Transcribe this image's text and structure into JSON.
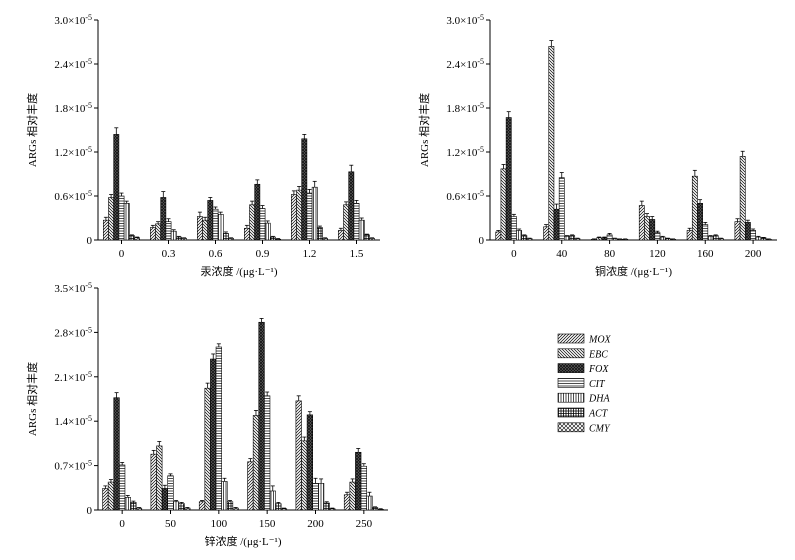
{
  "figure": {
    "legend": [
      {
        "label": "MOX",
        "pattern": "diag-right"
      },
      {
        "label": "EBC",
        "pattern": "diag-left"
      },
      {
        "label": "FOX",
        "pattern": "crosshatch-dense"
      },
      {
        "label": "CIT",
        "pattern": "horizontal"
      },
      {
        "label": "DHA",
        "pattern": "vertical"
      },
      {
        "label": "ACT",
        "pattern": "grid"
      },
      {
        "label": "CMY",
        "pattern": "crosshatch"
      }
    ],
    "legend_position": "right, beside bottom-left panel"
  },
  "chart_data": [
    {
      "type": "bar",
      "panel": "mercury",
      "title": "",
      "xlabel": "汞浓度 /(μg·L⁻¹)",
      "ylabel": "ARGs 相对丰度",
      "categories": [
        "0",
        "0.3",
        "0.6",
        "0.9",
        "1.2",
        "1.5"
      ],
      "ylim": [
        0,
        3e-05
      ],
      "yticks": [
        0,
        6e-06,
        1.2e-05,
        1.8e-05,
        2.4e-05,
        3e-05
      ],
      "ytick_labels": [
        "0",
        "0.6×10⁻⁵",
        "1.2×10⁻⁵",
        "1.8×10⁻⁵",
        "2.4×10⁻⁵",
        "3.0×10⁻⁵"
      ],
      "grid": false,
      "series": [
        {
          "name": "MOX",
          "values": [
            2.7e-06,
            1.7e-06,
            3.2e-06,
            1.6e-06,
            6.2e-06,
            1.3e-06
          ],
          "errors": [
            4e-07,
            3e-07,
            6e-07,
            4e-07,
            5e-07,
            3e-07
          ]
        },
        {
          "name": "EBC",
          "values": [
            5.8e-06,
            2.2e-06,
            2.7e-06,
            4.8e-06,
            6.8e-06,
            4.8e-06
          ],
          "errors": [
            4e-07,
            3e-07,
            4e-07,
            5e-07,
            5e-07,
            4e-07
          ]
        },
        {
          "name": "FOX",
          "values": [
            1.44e-05,
            5.8e-06,
            5.4e-06,
            7.6e-06,
            1.38e-05,
            9.3e-06
          ],
          "errors": [
            9e-07,
            8e-07,
            4e-07,
            6e-07,
            6e-07,
            9e-07
          ]
        },
        {
          "name": "CIT",
          "values": [
            6e-06,
            2.5e-06,
            4.2e-06,
            4.3e-06,
            6.4e-06,
            5e-06
          ],
          "errors": [
            4e-07,
            4e-07,
            3e-07,
            4e-07,
            5e-07,
            4e-07
          ]
        },
        {
          "name": "DHA",
          "values": [
            5e-06,
            1.2e-06,
            3.5e-06,
            2.3e-06,
            7.2e-06,
            2.7e-06
          ],
          "errors": [
            3e-07,
            2e-07,
            3e-07,
            3e-07,
            8e-07,
            3e-07
          ]
        },
        {
          "name": "ACT",
          "values": [
            6e-07,
            4e-07,
            9e-07,
            4e-07,
            1.7e-06,
            7e-07
          ],
          "errors": [
            1e-07,
            1e-07,
            2e-07,
            1e-07,
            2e-07,
            1e-07
          ]
        },
        {
          "name": "CMY",
          "values": [
            3e-07,
            2e-07,
            2e-07,
            1e-07,
            2e-07,
            2e-07
          ],
          "errors": [
            1e-07,
            1e-07,
            1e-07,
            1e-07,
            1e-07,
            1e-07
          ]
        }
      ]
    },
    {
      "type": "bar",
      "panel": "copper",
      "title": "",
      "xlabel": "铜浓度 /(μg·L⁻¹)",
      "ylabel": "ARGs 相对丰度",
      "categories": [
        "0",
        "40",
        "80",
        "120",
        "160",
        "200"
      ],
      "ylim": [
        0,
        3e-05
      ],
      "yticks": [
        0,
        6e-06,
        1.2e-05,
        1.8e-05,
        2.4e-05,
        3e-05
      ],
      "ytick_labels": [
        "0",
        "0.6×10⁻⁵",
        "1.2×10⁻⁵",
        "1.8×10⁻⁵",
        "2.4×10⁻⁵",
        "3.0×10⁻⁵"
      ],
      "grid": false,
      "series": [
        {
          "name": "MOX",
          "values": [
            1.1e-06,
            1.8e-06,
            1e-07,
            4.7e-06,
            1.3e-06,
            2.5e-06
          ],
          "errors": [
            2e-07,
            3e-07,
            5e-08,
            6e-07,
            3e-07,
            4e-07
          ]
        },
        {
          "name": "EBC",
          "values": [
            9.7e-06,
            2.64e-05,
            3e-07,
            3.2e-06,
            8.7e-06,
            1.14e-05
          ],
          "errors": [
            6e-07,
            8e-07,
            1e-07,
            4e-07,
            8e-07,
            7e-07
          ]
        },
        {
          "name": "FOX",
          "values": [
            1.67e-05,
            4.2e-06,
            3e-07,
            2.8e-06,
            5e-06,
            2.4e-06
          ],
          "errors": [
            8e-07,
            7e-07,
            1e-07,
            4e-07,
            5e-07,
            3e-07
          ]
        },
        {
          "name": "CIT",
          "values": [
            3.2e-06,
            8.5e-06,
            7e-07,
            1e-06,
            2.1e-06,
            1.3e-06
          ],
          "errors": [
            3e-07,
            7e-07,
            2e-07,
            2e-07,
            3e-07,
            2e-07
          ]
        },
        {
          "name": "DHA",
          "values": [
            1.3e-06,
            5e-07,
            2e-07,
            4e-07,
            5e-07,
            4e-07
          ],
          "errors": [
            2e-07,
            1e-07,
            5e-08,
            1e-07,
            1e-07,
            1e-07
          ]
        },
        {
          "name": "ACT",
          "values": [
            6e-07,
            6e-07,
            1e-07,
            2e-07,
            6e-07,
            3e-07
          ],
          "errors": [
            1e-07,
            1e-07,
            5e-08,
            5e-08,
            1e-07,
            5e-08
          ]
        },
        {
          "name": "CMY",
          "values": [
            2e-07,
            2e-07,
            1e-07,
            1e-07,
            2e-07,
            1e-07
          ],
          "errors": [
            5e-08,
            5e-08,
            5e-08,
            5e-08,
            5e-08,
            5e-08
          ]
        }
      ]
    },
    {
      "type": "bar",
      "panel": "zinc",
      "title": "",
      "xlabel": "锌浓度 /(μg·L⁻¹)",
      "ylabel": "ARGs 相对丰度",
      "categories": [
        "0",
        "50",
        "100",
        "150",
        "200",
        "250"
      ],
      "ylim": [
        0,
        3.5e-05
      ],
      "yticks": [
        0,
        7e-06,
        1.4e-05,
        2.1e-05,
        2.8e-05,
        3.5e-05
      ],
      "ytick_labels": [
        "0",
        "0.7×10⁻⁵",
        "1.4×10⁻⁵",
        "2.1×10⁻⁵",
        "2.8×10⁻⁵",
        "3.5×10⁻⁵"
      ],
      "grid": false,
      "series": [
        {
          "name": "MOX",
          "values": [
            3.4e-06,
            8.8e-06,
            1.3e-06,
            7.6e-06,
            1.72e-05,
            2.4e-06
          ],
          "errors": [
            4e-07,
            6e-07,
            2e-07,
            5e-07,
            8e-07,
            4e-07
          ]
        },
        {
          "name": "EBC",
          "values": [
            4.4e-06,
            1.01e-05,
            1.92e-05,
            1.49e-05,
            1.09e-05,
            4.4e-06
          ],
          "errors": [
            4e-07,
            7e-07,
            8e-07,
            8e-07,
            6e-07,
            5e-07
          ]
        },
        {
          "name": "FOX",
          "values": [
            1.77e-05,
            3.4e-06,
            2.38e-05,
            2.96e-05,
            1.5e-05,
            9.1e-06
          ],
          "errors": [
            8e-07,
            5e-07,
            8e-07,
            6e-07,
            5e-07,
            6e-07
          ]
        },
        {
          "name": "CIT",
          "values": [
            7.1e-06,
            5.4e-06,
            2.57e-05,
            1.8e-05,
            4.2e-06,
            6.9e-06
          ],
          "errors": [
            4e-07,
            3e-07,
            5e-07,
            6e-07,
            8e-07,
            4e-07
          ]
        },
        {
          "name": "DHA",
          "values": [
            2e-06,
            1.3e-06,
            4.5e-06,
            3e-06,
            4.2e-06,
            2.2e-06
          ],
          "errors": [
            3e-07,
            2e-07,
            5e-07,
            8e-07,
            7e-07,
            6e-07
          ]
        },
        {
          "name": "ACT",
          "values": [
            1.2e-06,
            1e-06,
            1.3e-06,
            1e-06,
            1.1e-06,
            4e-07
          ],
          "errors": [
            2e-07,
            2e-07,
            2e-07,
            2e-07,
            2e-07,
            1e-07
          ]
        },
        {
          "name": "CMY",
          "values": [
            3e-07,
            3e-07,
            3e-07,
            2e-07,
            2e-07,
            1e-07
          ],
          "errors": [
            1e-07,
            1e-07,
            1e-07,
            1e-07,
            1e-07,
            1e-07
          ]
        }
      ]
    }
  ]
}
